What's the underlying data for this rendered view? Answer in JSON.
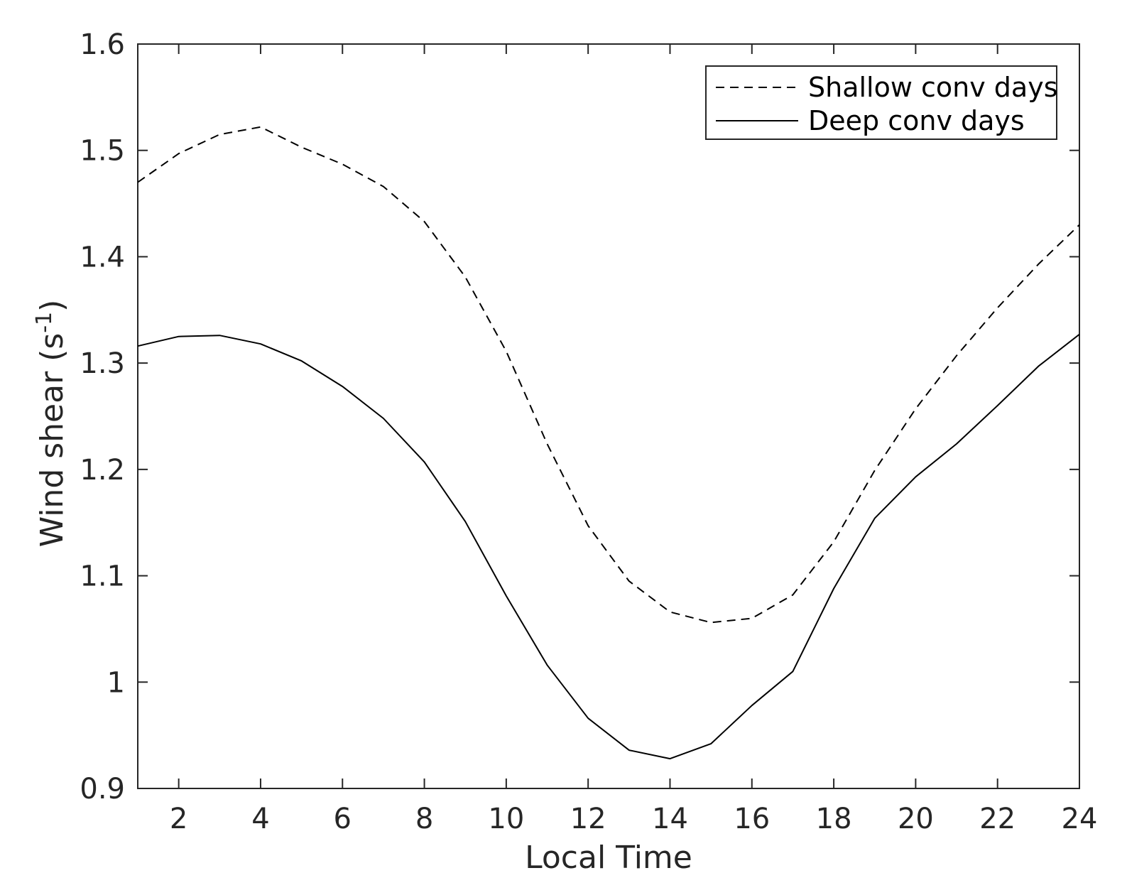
{
  "chart_data": {
    "type": "line",
    "xlabel": "Local Time",
    "ylabel": "Wind shear (s",
    "ylabel_superscript": "-1",
    "ylabel_suffix": ")",
    "xlim": [
      1,
      24
    ],
    "ylim": [
      0.9,
      1.6
    ],
    "xticks": [
      2,
      4,
      6,
      8,
      10,
      12,
      14,
      16,
      18,
      20,
      22,
      24
    ],
    "xtick_labels": [
      "2",
      "4",
      "6",
      "8",
      "10",
      "12",
      "14",
      "16",
      "18",
      "20",
      "22",
      "24"
    ],
    "yticks": [
      0.9,
      1.0,
      1.1,
      1.2,
      1.3,
      1.4,
      1.5,
      1.6
    ],
    "ytick_labels": [
      "0.9",
      "1",
      "1.1",
      "1.2",
      "1.3",
      "1.4",
      "1.5",
      "1.6"
    ],
    "grid": false,
    "legend_position": "top-right",
    "x": [
      1,
      2,
      3,
      4,
      5,
      6,
      7,
      8,
      9,
      10,
      11,
      12,
      13,
      14,
      15,
      16,
      17,
      18,
      19,
      20,
      21,
      22,
      23,
      24
    ],
    "series": [
      {
        "name": "Shallow conv days",
        "style": "dashed",
        "color": "#000000",
        "values": [
          1.47,
          1.497,
          1.515,
          1.522,
          1.503,
          1.487,
          1.466,
          1.433,
          1.381,
          1.311,
          1.224,
          1.147,
          1.095,
          1.066,
          1.056,
          1.06,
          1.082,
          1.132,
          1.199,
          1.257,
          1.307,
          1.352,
          1.393,
          1.43
        ]
      },
      {
        "name": "Deep conv days",
        "style": "solid",
        "color": "#000000",
        "values": [
          1.316,
          1.325,
          1.326,
          1.318,
          1.302,
          1.278,
          1.248,
          1.207,
          1.151,
          1.081,
          1.016,
          0.966,
          0.936,
          0.928,
          0.942,
          0.978,
          1.01,
          1.088,
          1.154,
          1.193,
          1.224,
          1.26,
          1.297,
          1.327
        ]
      }
    ]
  }
}
